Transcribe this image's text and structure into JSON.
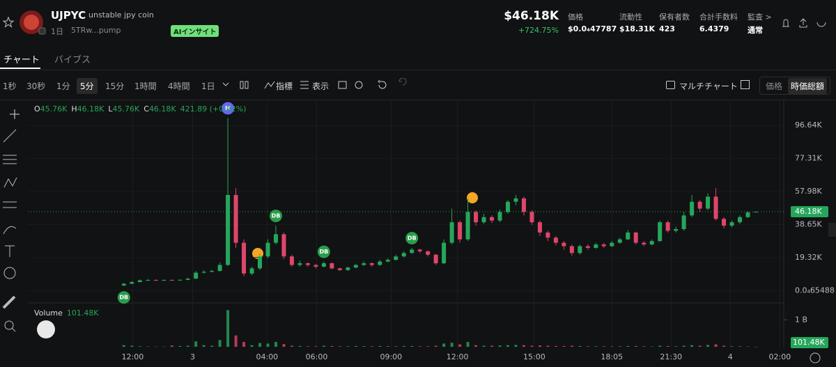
{
  "header": {
    "token": "UJPYC",
    "name": "unstable jpy coin",
    "age": "1日",
    "address": "5TRw...pump",
    "ai": "AIインサイト",
    "price": "$46.18K",
    "change": "+724.75%",
    "stats": [
      {
        "label": "価格",
        "value": "$0.0₄47787"
      },
      {
        "label": "流動性",
        "value": "$18.31K"
      },
      {
        "label": "保有者数",
        "value": "423"
      },
      {
        "label": "合計手数料",
        "value": "6.4379"
      },
      {
        "label": "監査 >",
        "value": "通常"
      }
    ]
  },
  "tabs": [
    "チャート",
    "バイブス"
  ],
  "toolbar": {
    "intervals": [
      "1秒",
      "30秒",
      "1分",
      "5分",
      "15分",
      "1時間",
      "4時間",
      "1日"
    ],
    "indicators": "指標",
    "display": "表示",
    "multichart": "マルチチャート",
    "price": "価格",
    "mcap": "時価総額"
  },
  "chart_data": {
    "type": "candlestick",
    "legend_ohlc": [
      {
        "key": "O",
        "value": "45.76K"
      },
      {
        "key": "H",
        "value": "46.18K"
      },
      {
        "key": "L",
        "value": "45.76K"
      },
      {
        "key": "C",
        "value": "46.18K"
      }
    ],
    "legend_change": "421.89 (+0.92%)",
    "up_color": "#26a65b",
    "down_color": "#e0456b",
    "xlim": [
      -12,
      82.4
    ],
    "xticks": [
      {
        "value": 1.1,
        "label": "12:00"
      },
      {
        "value": 8.6,
        "label": "3"
      },
      {
        "value": 17.9,
        "label": "04:00"
      },
      {
        "value": 24.1,
        "label": "06:00"
      },
      {
        "value": 33.4,
        "label": "09:00"
      },
      {
        "value": 41.7,
        "label": "12:00"
      },
      {
        "value": 51.3,
        "label": "15:00"
      },
      {
        "value": 61,
        "label": "18:05"
      },
      {
        "value": 68.4,
        "label": "21:30"
      },
      {
        "value": 75.8,
        "label": "4"
      },
      {
        "value": 82,
        "label": "02:00"
      }
    ],
    "ylim": [
      -6000,
      111000
    ],
    "yticks": [
      {
        "value": 6.5488e-05,
        "label": "0.0₄65488"
      },
      {
        "value": 19320,
        "label": "19.32K"
      },
      {
        "value": 38650,
        "label": "38.65K"
      },
      {
        "value": 57980,
        "label": "57.98K"
      },
      {
        "value": 77310,
        "label": "77.31K"
      },
      {
        "value": 96640,
        "label": "96.64K"
      }
    ],
    "grid": true,
    "last": {
      "value": 46180,
      "label": "46.18K"
    },
    "open": [
      3000,
      4000,
      5000,
      6000,
      6200,
      6000,
      6200,
      6100,
      6300,
      7000,
      10500,
      11000,
      11500,
      15000,
      56000,
      28000,
      10000,
      13000,
      20000,
      28000,
      33000,
      20000,
      15000,
      16000,
      15000,
      14000,
      16000,
      13000,
      12000,
      13500,
      15000,
      16000,
      15000,
      17000,
      18000,
      20000,
      22000,
      24000,
      23000,
      21000,
      16000,
      28000,
      40000,
      30000,
      46000,
      40000,
      43000,
      41000,
      46000,
      52000,
      54000,
      46000,
      40000,
      34000,
      31000,
      28000,
      26000,
      22000,
      26000,
      25000,
      27000,
      26000,
      28000,
      30000,
      34000,
      28000,
      27000,
      29000,
      40000,
      35000,
      36000,
      44000,
      52000,
      48000,
      55000,
      42000,
      38000,
      40000,
      43000,
      45760
    ],
    "high": [
      4500,
      5500,
      6500,
      6800,
      6600,
      6500,
      6500,
      6600,
      7500,
      11500,
      12000,
      12200,
      16500,
      101000,
      60000,
      30000,
      14000,
      21500,
      30000,
      38000,
      34000,
      21000,
      17500,
      16500,
      15500,
      17000,
      16500,
      13500,
      14000,
      15500,
      17000,
      16500,
      18000,
      19000,
      21000,
      23000,
      25000,
      24500,
      23500,
      21500,
      30000,
      48000,
      41000,
      54000,
      47000,
      45000,
      44000,
      47500,
      53000,
      56000,
      55000,
      47000,
      41000,
      35000,
      32000,
      29000,
      27000,
      27000,
      27000,
      28000,
      28000,
      29000,
      31000,
      35500,
      34500,
      29000,
      30000,
      41000,
      41000,
      37500,
      46000,
      56000,
      53000,
      57000,
      60000,
      43000,
      41000,
      44000,
      46500,
      46180
    ],
    "low": [
      2500,
      3800,
      4800,
      5600,
      5700,
      5800,
      5900,
      5900,
      6100,
      6800,
      10000,
      10600,
      11200,
      14500,
      25000,
      8500,
      9000,
      12000,
      19000,
      27000,
      18500,
      14000,
      14000,
      14000,
      13000,
      13500,
      12500,
      11500,
      11500,
      13000,
      14500,
      14000,
      14500,
      16500,
      17500,
      19500,
      21500,
      22000,
      20000,
      15000,
      15500,
      27000,
      28000,
      29000,
      38000,
      39000,
      39500,
      40000,
      45000,
      50000,
      44000,
      38500,
      32000,
      29000,
      26500,
      24000,
      20500,
      21000,
      24000,
      24500,
      25000,
      25500,
      27500,
      29500,
      27000,
      26000,
      26500,
      28500,
      34000,
      34000,
      35000,
      43000,
      46000,
      47000,
      41000,
      36500,
      37000,
      39000,
      42500,
      45760
    ],
    "close": [
      4000,
      5000,
      6000,
      6200,
      6000,
      6200,
      6100,
      6300,
      7000,
      10500,
      11000,
      11500,
      15000,
      56000,
      28000,
      10000,
      13000,
      20000,
      28000,
      33000,
      20000,
      15000,
      16000,
      15000,
      14000,
      16000,
      13000,
      12000,
      13500,
      15000,
      16000,
      15000,
      17000,
      18000,
      20000,
      22000,
      24000,
      23000,
      21000,
      16000,
      28000,
      40000,
      30000,
      46000,
      40000,
      43000,
      41000,
      46000,
      52000,
      54000,
      46000,
      40000,
      34000,
      31000,
      28000,
      26000,
      22000,
      26000,
      25000,
      27000,
      26000,
      28000,
      30000,
      34000,
      28000,
      27000,
      29000,
      40000,
      35000,
      36000,
      44000,
      52000,
      48000,
      55000,
      42000,
      38000,
      40000,
      43000,
      45760,
      46180
    ],
    "markers": [
      {
        "label": "DB",
        "index": 0,
        "color": "#2a9d4b"
      },
      {
        "label": "M",
        "index": 13,
        "color": "#6466f1"
      },
      {
        "label": "DB",
        "index": 19,
        "color": "#2a9d4b"
      },
      {
        "label": "DB",
        "index": 25,
        "color": "#2a9d4b"
      },
      {
        "label": "DB",
        "index": 36,
        "color": "#2a9d4b"
      }
    ],
    "volume_title": "Volume",
    "volume_last": {
      "value": 101480,
      "label": "101.48K"
    },
    "volume_lim": [
      0,
      1600000000
    ],
    "volume_ticks": [
      {
        "value": 1000000000,
        "label": "1 B"
      }
    ],
    "volume": [
      60000000,
      40000000,
      20000000,
      15000000,
      10000000,
      10000000,
      50000000,
      30000000,
      40000000,
      200000000,
      60000000,
      40000000,
      250000000,
      1360000000,
      420000000,
      180000000,
      60000000,
      140000000,
      120000000,
      180000000,
      100000000,
      40000000,
      30000000,
      20000000,
      20000000,
      40000000,
      30000000,
      20000000,
      20000000,
      30000000,
      25000000,
      20000000,
      30000000,
      25000000,
      20000000,
      30000000,
      30000000,
      20000000,
      20000000,
      40000000,
      120000000,
      150000000,
      90000000,
      180000000,
      60000000,
      40000000,
      40000000,
      50000000,
      60000000,
      70000000,
      60000000,
      40000000,
      50000000,
      40000000,
      30000000,
      30000000,
      40000000,
      30000000,
      20000000,
      20000000,
      20000000,
      15000000,
      20000000,
      30000000,
      30000000,
      20000000,
      15000000,
      40000000,
      30000000,
      20000000,
      40000000,
      60000000,
      40000000,
      70000000,
      90000000,
      40000000,
      20000000,
      20000000,
      15000000,
      101480
    ]
  }
}
